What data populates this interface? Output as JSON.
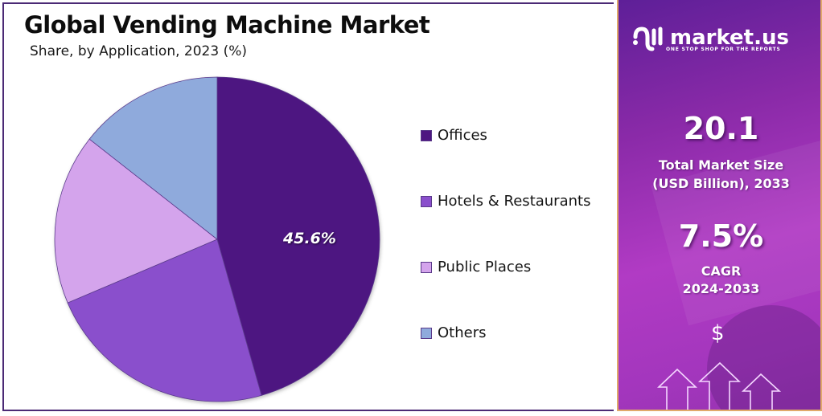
{
  "header": {
    "title": "Global Vending Machine Market",
    "subtitle": "Share, by Application, 2023 (%)"
  },
  "chart_data": {
    "type": "pie",
    "title": "Global Vending Machine Market",
    "subtitle": "Share, by Application, 2023 (%)",
    "categories": [
      "Offices",
      "Hotels & Restaurants",
      "Public Places",
      "Others"
    ],
    "values": [
      45.6,
      23.0,
      17.0,
      14.4
    ],
    "colors": [
      "#4e1681",
      "#8a4fcc",
      "#d4a4ec",
      "#8faadc"
    ],
    "data_labels": [
      {
        "category": "Offices",
        "label": "45.6%"
      }
    ],
    "start_angle": "12 o'clock, clockwise",
    "legend_position": "right"
  },
  "pie": {
    "label": "45.6%"
  },
  "legend": {
    "items": [
      {
        "label": "Offices",
        "color": "#4e1681"
      },
      {
        "label": "Hotels & Restaurants",
        "color": "#8a4fcc"
      },
      {
        "label": "Public Places",
        "color": "#d4a4ec"
      },
      {
        "label": "Others",
        "color": "#8faadc"
      }
    ]
  },
  "sidebar": {
    "brand": "market.us",
    "tagline": "ONE STOP SHOP FOR THE REPORTS",
    "market_size_value": "20.1",
    "market_size_label_1": "Total Market Size",
    "market_size_label_2": "(USD Billion), 2033",
    "cagr_value": "7.5%",
    "cagr_label": "CAGR",
    "cagr_period": "2024-2033",
    "dollar_symbol": "$"
  }
}
